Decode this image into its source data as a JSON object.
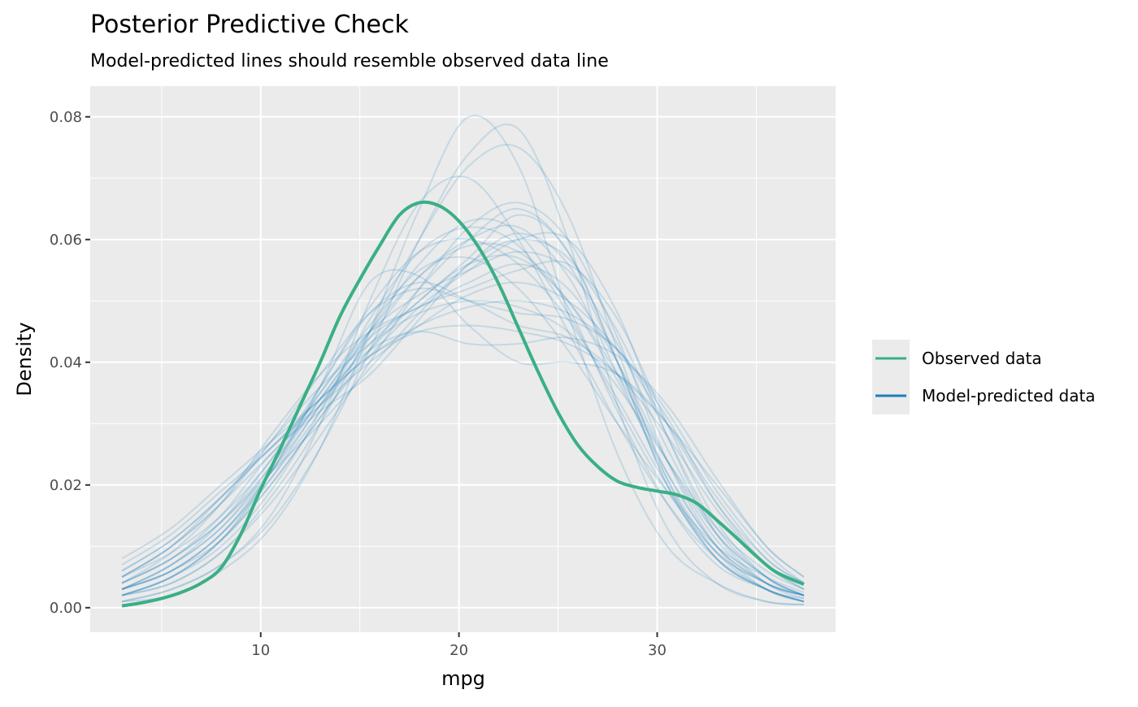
{
  "chart_data": {
    "type": "line",
    "title": "Posterior Predictive Check",
    "subtitle": "Model-predicted lines should resemble observed data line",
    "xlabel": "mpg",
    "ylabel": "Density",
    "xlim": [
      1.4,
      39.0
    ],
    "ylim": [
      -0.004,
      0.085
    ],
    "x_ticks": [
      10,
      20,
      30
    ],
    "x_tick_labels": [
      "10",
      "20",
      "30"
    ],
    "y_ticks": [
      0,
      0.02,
      0.04,
      0.06,
      0.08
    ],
    "y_tick_labels": [
      "0.00",
      "0.02",
      "0.04",
      "0.06",
      "0.08"
    ],
    "grid": true,
    "legend_position": "right",
    "colors": {
      "observed": "#3aaf85",
      "predicted": "#1b7fbd",
      "panel": "#ebebeb",
      "grid": "#ffffff"
    },
    "observed": {
      "name": "Observed data",
      "x": [
        3,
        4,
        5,
        6,
        7,
        8,
        9,
        10,
        11,
        12,
        13,
        14,
        15,
        16,
        17,
        18,
        19,
        20,
        21,
        22,
        23,
        24,
        25,
        26,
        27,
        28,
        29,
        30,
        31,
        32,
        33,
        34,
        35,
        36,
        37.4
      ],
      "y": [
        0.0003,
        0.0008,
        0.0015,
        0.0025,
        0.004,
        0.0065,
        0.012,
        0.0193,
        0.026,
        0.033,
        0.04,
        0.0475,
        0.0535,
        0.059,
        0.064,
        0.066,
        0.0655,
        0.063,
        0.0587,
        0.0528,
        0.0456,
        0.0384,
        0.0318,
        0.0265,
        0.023,
        0.0206,
        0.0196,
        0.019,
        0.0184,
        0.017,
        0.0143,
        0.0114,
        0.0084,
        0.0058,
        0.0038
      ]
    },
    "predicted": {
      "name": "Model-predicted data",
      "x": [
        3,
        5.5,
        8,
        10.5,
        13,
        15.5,
        18,
        20.5,
        23,
        25.5,
        28,
        30.5,
        33,
        35.5,
        37.4
      ],
      "draws": [
        [
          0.003,
          0.007,
          0.013,
          0.023,
          0.035,
          0.046,
          0.055,
          0.057,
          0.052,
          0.042,
          0.03,
          0.019,
          0.01,
          0.005,
          0.0025
        ],
        [
          0.005,
          0.01,
          0.018,
          0.027,
          0.036,
          0.043,
          0.048,
          0.05,
          0.049,
          0.045,
          0.036,
          0.024,
          0.013,
          0.006,
          0.003
        ],
        [
          0.002,
          0.004,
          0.009,
          0.018,
          0.03,
          0.045,
          0.06,
          0.072,
          0.075,
          0.064,
          0.042,
          0.021,
          0.008,
          0.003,
          0.001
        ],
        [
          0.008,
          0.013,
          0.02,
          0.027,
          0.034,
          0.041,
          0.045,
          0.046,
          0.045,
          0.043,
          0.038,
          0.03,
          0.02,
          0.01,
          0.005
        ],
        [
          0.004,
          0.008,
          0.015,
          0.025,
          0.032,
          0.038,
          0.047,
          0.056,
          0.061,
          0.056,
          0.04,
          0.022,
          0.01,
          0.004,
          0.002
        ],
        [
          0.001,
          0.003,
          0.007,
          0.015,
          0.03,
          0.05,
          0.066,
          0.07,
          0.06,
          0.045,
          0.03,
          0.017,
          0.008,
          0.003,
          0.001
        ],
        [
          0.003,
          0.006,
          0.011,
          0.02,
          0.031,
          0.041,
          0.049,
          0.055,
          0.06,
          0.06,
          0.048,
          0.028,
          0.012,
          0.004,
          0.0015
        ],
        [
          0.006,
          0.011,
          0.018,
          0.026,
          0.033,
          0.04,
          0.046,
          0.051,
          0.053,
          0.05,
          0.042,
          0.03,
          0.017,
          0.008,
          0.004
        ],
        [
          0.002,
          0.005,
          0.01,
          0.019,
          0.032,
          0.047,
          0.058,
          0.062,
          0.059,
          0.048,
          0.033,
          0.019,
          0.009,
          0.004,
          0.002
        ],
        [
          0.001,
          0.002,
          0.006,
          0.013,
          0.026,
          0.045,
          0.065,
          0.08,
          0.072,
          0.048,
          0.025,
          0.01,
          0.004,
          0.001,
          0.0005
        ],
        [
          0.002,
          0.005,
          0.011,
          0.021,
          0.033,
          0.043,
          0.05,
          0.057,
          0.064,
          0.058,
          0.04,
          0.02,
          0.008,
          0.003,
          0.001
        ],
        [
          0.005,
          0.009,
          0.015,
          0.024,
          0.036,
          0.048,
          0.053,
          0.05,
          0.046,
          0.044,
          0.038,
          0.028,
          0.016,
          0.007,
          0.003
        ],
        [
          0.003,
          0.007,
          0.014,
          0.024,
          0.035,
          0.045,
          0.051,
          0.055,
          0.058,
          0.055,
          0.043,
          0.026,
          0.012,
          0.005,
          0.002
        ],
        [
          0.004,
          0.008,
          0.014,
          0.022,
          0.03,
          0.039,
          0.048,
          0.056,
          0.06,
          0.057,
          0.045,
          0.028,
          0.013,
          0.005,
          0.002
        ],
        [
          0.002,
          0.005,
          0.011,
          0.022,
          0.036,
          0.049,
          0.058,
          0.06,
          0.056,
          0.047,
          0.034,
          0.02,
          0.009,
          0.004,
          0.002
        ],
        [
          0.003,
          0.006,
          0.012,
          0.022,
          0.036,
          0.053,
          0.054,
          0.046,
          0.04,
          0.04,
          0.038,
          0.03,
          0.018,
          0.008,
          0.004
        ],
        [
          0.001,
          0.003,
          0.007,
          0.014,
          0.026,
          0.042,
          0.06,
          0.074,
          0.078,
          0.06,
          0.033,
          0.013,
          0.004,
          0.001,
          0.0005
        ],
        [
          0.006,
          0.011,
          0.018,
          0.026,
          0.034,
          0.041,
          0.046,
          0.049,
          0.05,
          0.048,
          0.042,
          0.032,
          0.019,
          0.009,
          0.004
        ],
        [
          0.003,
          0.006,
          0.012,
          0.021,
          0.032,
          0.044,
          0.054,
          0.06,
          0.062,
          0.054,
          0.038,
          0.021,
          0.009,
          0.003,
          0.0015
        ],
        [
          0.004,
          0.009,
          0.017,
          0.028,
          0.038,
          0.045,
          0.049,
          0.053,
          0.056,
          0.052,
          0.04,
          0.024,
          0.011,
          0.004,
          0.002
        ],
        [
          0.002,
          0.004,
          0.009,
          0.017,
          0.028,
          0.04,
          0.052,
          0.062,
          0.066,
          0.06,
          0.044,
          0.024,
          0.01,
          0.003,
          0.001
        ],
        [
          0.005,
          0.01,
          0.017,
          0.025,
          0.033,
          0.042,
          0.05,
          0.056,
          0.057,
          0.05,
          0.038,
          0.024,
          0.012,
          0.005,
          0.002
        ],
        [
          0.003,
          0.007,
          0.013,
          0.022,
          0.033,
          0.045,
          0.056,
          0.063,
          0.061,
          0.049,
          0.032,
          0.017,
          0.007,
          0.003,
          0.001
        ],
        [
          0.007,
          0.012,
          0.019,
          0.026,
          0.034,
          0.042,
          0.045,
          0.043,
          0.043,
          0.044,
          0.041,
          0.033,
          0.021,
          0.01,
          0.005
        ],
        [
          0.002,
          0.005,
          0.011,
          0.02,
          0.031,
          0.042,
          0.052,
          0.06,
          0.065,
          0.058,
          0.04,
          0.02,
          0.008,
          0.003,
          0.001
        ],
        [
          0.004,
          0.008,
          0.014,
          0.023,
          0.034,
          0.045,
          0.054,
          0.059,
          0.058,
          0.05,
          0.037,
          0.022,
          0.01,
          0.004,
          0.002
        ],
        [
          0.003,
          0.006,
          0.012,
          0.022,
          0.034,
          0.044,
          0.049,
          0.052,
          0.055,
          0.056,
          0.047,
          0.03,
          0.014,
          0.005,
          0.002
        ],
        [
          0.005,
          0.01,
          0.017,
          0.027,
          0.038,
          0.048,
          0.052,
          0.05,
          0.048,
          0.047,
          0.042,
          0.031,
          0.017,
          0.007,
          0.003
        ]
      ]
    },
    "legend": [
      "Observed data",
      "Model-predicted data"
    ]
  }
}
